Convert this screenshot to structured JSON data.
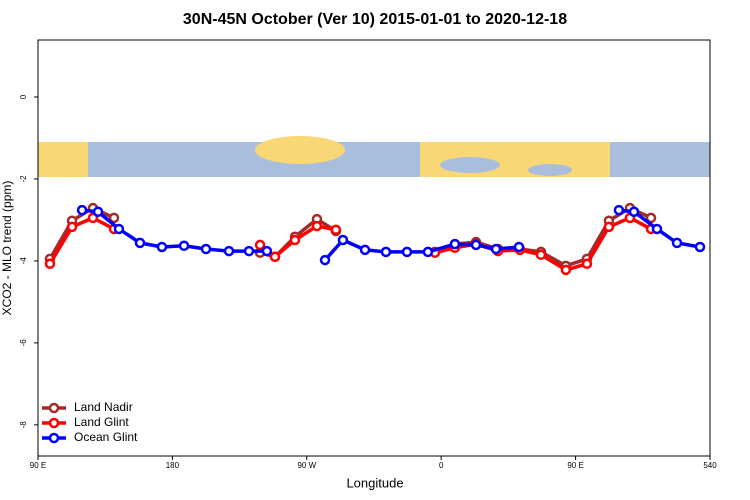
{
  "chart_data": {
    "type": "line",
    "title": "30N-45N October (Ver 10)   2015-01-01 to 2020-12-18",
    "x_label": "Longitude",
    "y_label": "XCO2 - MLO trend (ppm)",
    "xlim": [
      90,
      540
    ],
    "xticks": [
      {
        "value": 90,
        "label": "90 E"
      },
      180,
      {
        "value": 270,
        "label": "90 W"
      },
      {
        "value": 360,
        "label": "0"
      },
      {
        "value": 450,
        "label": "90 E"
      },
      540
    ],
    "ylim": [
      -8.76,
      1.39
    ],
    "yticks": [
      0,
      -2,
      -4,
      -6,
      -8
    ],
    "legend": "bottom-left",
    "series": [
      {
        "name": "Land Nadir",
        "color": "#a52a2a",
        "x": [
          98.0,
          112.8,
          126.8,
          140.9,
          null,
          238.7,
          248.7,
          262.1,
          276.8,
          289.5,
          null,
          355.8,
          369.2,
          383.3,
          398.0,
          412.7,
          426.8,
          443.5,
          457.6,
          472.3,
          486.4,
          500.5
        ],
        "values": [
          -3.95,
          -3.02,
          -2.71,
          -2.95,
          null,
          -3.8,
          -3.9,
          -3.41,
          -2.98,
          -3.27,
          null,
          -3.78,
          -3.59,
          -3.54,
          -3.71,
          -3.71,
          -3.78,
          -4.12,
          -3.95,
          -3.02,
          -2.71,
          -2.95
        ]
      },
      {
        "name": "Land Glint",
        "color": "#ff0000",
        "x": [
          98.0,
          112.8,
          126.8,
          140.9,
          null,
          238.7,
          248.7,
          262.1,
          276.8,
          289.5,
          null,
          355.8,
          369.2,
          383.3,
          398.0,
          412.7,
          426.8,
          443.5,
          457.6,
          472.3,
          486.4,
          500.5
        ],
        "values": [
          -4.07,
          -3.17,
          -2.95,
          -3.22,
          null,
          -3.61,
          -3.9,
          -3.49,
          -3.15,
          -3.24,
          null,
          -3.8,
          -3.68,
          -3.59,
          -3.76,
          -3.73,
          -3.85,
          -4.22,
          -4.07,
          -3.17,
          -2.95,
          -3.22
        ]
      },
      {
        "name": "Ocean Glint",
        "color": "#0000ff",
        "x": [
          119.5,
          130.2,
          144.2,
          158.3,
          173.0,
          187.8,
          202.5,
          217.9,
          231.3,
          243.3,
          null,
          282.2,
          294.2,
          309.0,
          323.0,
          337.1,
          351.1,
          369.2,
          383.3,
          396.7,
          412.1,
          null,
          479.0,
          489.1,
          504.5,
          517.9,
          533.3
        ],
        "values": [
          -2.76,
          -2.8,
          -3.22,
          -3.56,
          -3.66,
          -3.63,
          -3.71,
          -3.76,
          -3.76,
          -3.76,
          null,
          -3.98,
          -3.49,
          -3.73,
          -3.78,
          -3.78,
          -3.78,
          -3.59,
          -3.61,
          -3.71,
          -3.66,
          null,
          -2.76,
          -2.8,
          -3.22,
          -3.56,
          -3.66
        ]
      }
    ]
  }
}
